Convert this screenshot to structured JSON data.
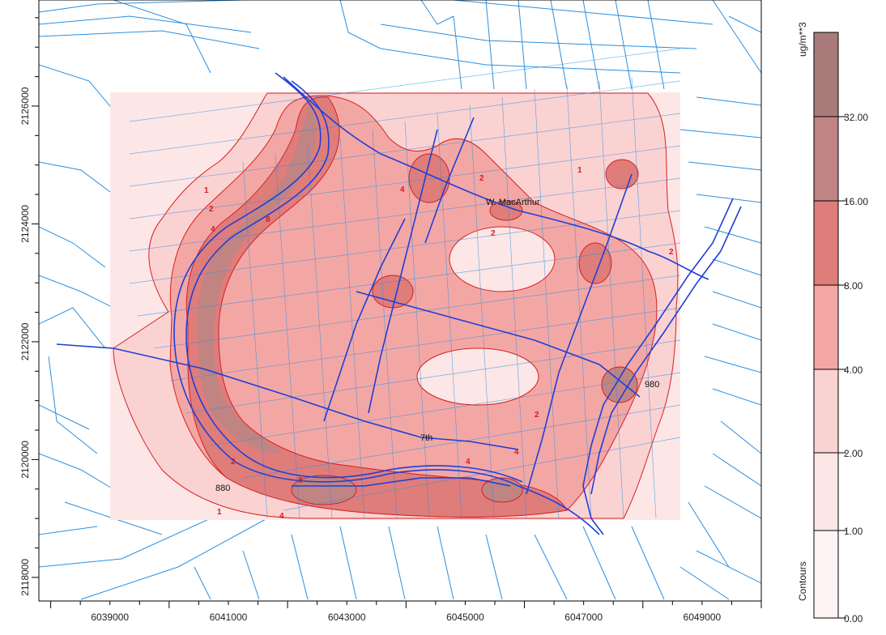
{
  "map": {
    "x_ticks": [
      "6039000",
      "6041000",
      "6043000",
      "6045000",
      "6047000",
      "6049000"
    ],
    "y_ticks": [
      "2118000",
      "2120000",
      "2122000",
      "2124000",
      "2126000"
    ],
    "road_labels": [
      "W. MacArthur",
      "7th",
      "880",
      "980"
    ],
    "contour_numbers": [
      "1",
      "2",
      "4",
      "8",
      "2",
      "4",
      "1",
      "2",
      "4",
      "8",
      "2",
      "4",
      "4",
      "2",
      "1",
      "2"
    ]
  },
  "legend": {
    "unit": "ug/m**3",
    "title": "Contours",
    "levels": [
      "32.00",
      "16.00",
      "8.00",
      "4.00",
      "2.00",
      "1.00",
      "0.00"
    ],
    "colors": [
      "#a87b7a",
      "#c08483",
      "#df7d7b",
      "#f3a7a5",
      "#fbd2d2",
      "#fde6e6",
      "#fef3f3"
    ]
  },
  "chart_data": {
    "type": "heatmap",
    "title": "",
    "xlabel": "",
    "ylabel": "",
    "xlim": [
      6037800,
      6050000
    ],
    "ylim": [
      2117600,
      2127800
    ],
    "x_ticks": [
      6039000,
      6041000,
      6043000,
      6045000,
      6047000,
      6049000
    ],
    "y_ticks": [
      2118000,
      2120000,
      2122000,
      2124000,
      2126000
    ],
    "contour_levels": [
      0,
      1,
      2,
      4,
      8,
      16,
      32
    ],
    "unit": "ug/m**3",
    "legend_title": "Contours",
    "legend_placement": "right",
    "road_labels": [
      "W. MacArthur",
      "7th",
      "880",
      "980"
    ]
  }
}
